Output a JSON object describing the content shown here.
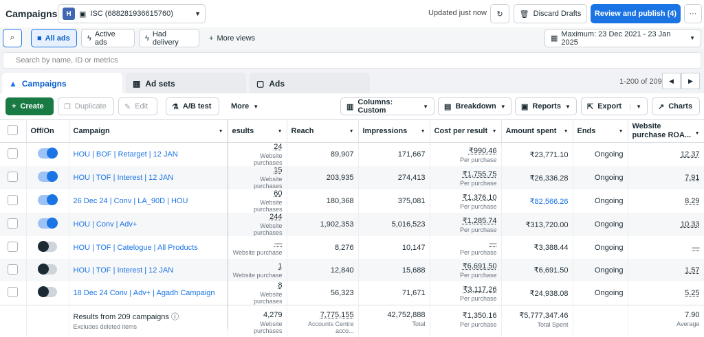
{
  "header": {
    "title": "Campaigns",
    "account_badge": "H",
    "account_name": "ISC (688281936615760)",
    "updated": "Updated just now",
    "discard": "Discard Drafts",
    "review": "Review and publish (4)",
    "more": "···"
  },
  "views": {
    "all_ads": "All ads",
    "active_ads": "Active ads",
    "had_delivery": "Had delivery",
    "more_views": "More views",
    "date_range": "Maximum: 23 Dec 2021 - 23 Jan 2025"
  },
  "search": {
    "placeholder": "Search by name, ID or metrics"
  },
  "tabs": {
    "campaigns": "Campaigns",
    "ad_sets": "Ad sets",
    "ads": "Ads"
  },
  "pagination": "1-200 of 209",
  "toolbar": {
    "create": "Create",
    "duplicate": "Duplicate",
    "edit": "Edit",
    "ab_test": "A/B test",
    "more": "More",
    "columns": "Columns: Custom",
    "breakdown": "Breakdown",
    "reports": "Reports",
    "export": "Export",
    "charts": "Charts"
  },
  "columns": {
    "onoff": "Off/On",
    "campaign": "Campaign",
    "results": "esults",
    "reach": "Reach",
    "impressions": "Impressions",
    "cpr": "Cost per result",
    "spent": "Amount spent",
    "ends": "Ends",
    "roas": "Website purchase ROA..."
  },
  "rows": [
    {
      "on": true,
      "name": "HOU | BOF | Retarget | 12 JAN",
      "results": "24",
      "results_sub": "Website purchases",
      "reach": "89,907",
      "impressions": "171,667",
      "cpr": "₹990.46",
      "cpr_sub": "Per purchase",
      "spent": "₹23,771.10",
      "ends": "Ongoing",
      "roas": "12.37"
    },
    {
      "on": true,
      "name": "HOU | TOF | Interest | 12 JAN",
      "results": "15",
      "results_sub": "Website purchases",
      "reach": "203,935",
      "impressions": "274,413",
      "cpr": "₹1,755.75",
      "cpr_sub": "Per purchase",
      "spent": "₹26,336.28",
      "ends": "Ongoing",
      "roas": "7.91"
    },
    {
      "on": true,
      "name": "26 Dec 24 | Conv | LA_90D | HOU",
      "results": "60",
      "results_sub": "Website purchases",
      "reach": "180,368",
      "impressions": "375,081",
      "cpr": "₹1,376.10",
      "cpr_sub": "Per purchase",
      "spent": "₹82,566.26",
      "ends": "Ongoing",
      "roas": "8.29"
    },
    {
      "on": true,
      "name": "HOU | Conv | Adv+",
      "results": "244",
      "results_sub": "Website purchases",
      "reach": "1,902,353",
      "impressions": "5,016,523",
      "cpr": "₹1,285.74",
      "cpr_sub": "Per purchase",
      "spent": "₹313,720.00",
      "ends": "Ongoing",
      "roas": "10.33"
    },
    {
      "on": false,
      "name": "HOU | TOF | Catelogue | All Products",
      "results": "—",
      "results_sub": "Website purchase",
      "reach": "8,276",
      "impressions": "10,147",
      "cpr": "—",
      "cpr_sub": "Per purchase",
      "spent": "₹3,388.44",
      "ends": "Ongoing",
      "roas": "—"
    },
    {
      "on": false,
      "name": "HOU | TOF | Interest | 12 JAN",
      "results": "1",
      "results_sub": "Website purchase",
      "reach": "12,840",
      "impressions": "15,688",
      "cpr": "₹6,691.50",
      "cpr_sub": "Per purchase",
      "spent": "₹6,691.50",
      "ends": "Ongoing",
      "roas": "1.57"
    },
    {
      "on": false,
      "name": "18 Dec 24 Conv | Adv+ | Agadh Campaign",
      "results": "8",
      "results_sub": "Website purchases",
      "reach": "56,323",
      "impressions": "71,671",
      "cpr": "₹3,117.26",
      "cpr_sub": "Per purchase",
      "spent": "₹24,938.08",
      "ends": "Ongoing",
      "roas": "5.25"
    }
  ],
  "footer": {
    "label": "Results from 209 campaigns",
    "label_sub": "Excludes deleted items",
    "results": "4,279",
    "results_sub": "Website purchases",
    "reach": "7,775,155",
    "reach_sub": "Accounts Centre acco...",
    "impressions": "42,752,888",
    "impressions_sub": "Total",
    "cpr": "₹1,350.16",
    "cpr_sub": "Per purchase",
    "spent": "₹5,777,347.46",
    "spent_sub": "Total Spent",
    "roas": "7.90",
    "roas_sub": "Average"
  },
  "colors": {
    "accent": "#1b74e4",
    "create": "#1a7a43"
  }
}
